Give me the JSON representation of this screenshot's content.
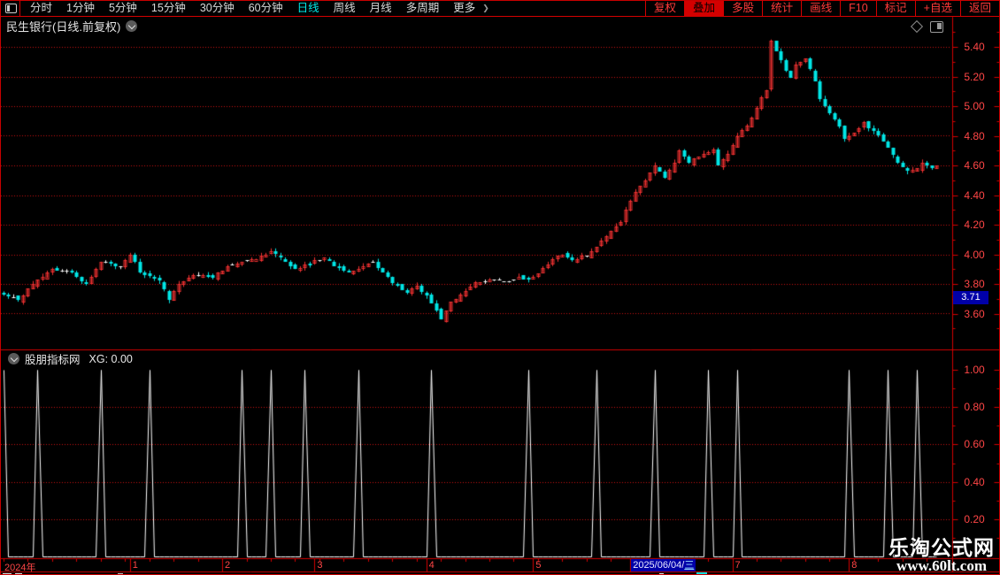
{
  "window": {
    "background": "#000000",
    "border_color": "#c80000"
  },
  "toolbar": {
    "left_items": [
      {
        "label": "分时"
      },
      {
        "label": "1分钟"
      },
      {
        "label": "5分钟"
      },
      {
        "label": "15分钟"
      },
      {
        "label": "30分钟"
      },
      {
        "label": "60分钟"
      },
      {
        "label": "日线",
        "selected": true
      },
      {
        "label": "周线"
      },
      {
        "label": "月线"
      },
      {
        "label": "多周期"
      },
      {
        "label": "更多",
        "chevron": true
      }
    ],
    "right_items": [
      {
        "label": "复权"
      },
      {
        "label": "叠加",
        "active": true
      },
      {
        "label": "多股"
      },
      {
        "label": "统计"
      },
      {
        "label": "画线"
      },
      {
        "label": "F10"
      },
      {
        "label": "标记"
      },
      {
        "label": "+自选"
      },
      {
        "label": "返回"
      }
    ]
  },
  "title_bar": {
    "title": "民生银行(日线.前复权)"
  },
  "sub_panel": {
    "name": "股朋指标网",
    "value_text": "XG: 0.00"
  },
  "watermark": {
    "line1": "乐淘公式网",
    "line2": "www.60lt.com"
  },
  "chart_data": [
    {
      "type": "candlestick",
      "name": "民生银行 日线 前复权",
      "price_axis": {
        "labels": [
          "5.40",
          "5.20",
          "5.00",
          "4.80",
          "4.60",
          "4.40",
          "4.20",
          "4.00",
          "3.80",
          "3.60"
        ],
        "max": 5.4,
        "min": 3.6,
        "step": 0.2,
        "grid": "dotted-red"
      },
      "current_price_tag": {
        "value": "3.71",
        "price": 3.71,
        "bg": "#0000a8"
      },
      "colors": {
        "up": "#f03030",
        "down": "#00e6e6",
        "doji": "#ffffff",
        "grid": "#cf1010",
        "axis": "#d40000"
      },
      "n_candles": 193,
      "close_landmarks": [
        [
          0,
          3.73
        ],
        [
          3,
          3.69
        ],
        [
          6,
          3.8
        ],
        [
          10,
          3.9
        ],
        [
          14,
          3.88
        ],
        [
          17,
          3.8
        ],
        [
          20,
          3.95
        ],
        [
          24,
          3.92
        ],
        [
          26,
          4.0
        ],
        [
          28,
          3.88
        ],
        [
          32,
          3.82
        ],
        [
          34,
          3.7
        ],
        [
          36,
          3.8
        ],
        [
          39,
          3.86
        ],
        [
          43,
          3.85
        ],
        [
          46,
          3.92
        ],
        [
          49,
          3.95
        ],
        [
          52,
          3.98
        ],
        [
          55,
          4.02
        ],
        [
          57,
          3.98
        ],
        [
          60,
          3.9
        ],
        [
          63,
          3.93
        ],
        [
          66,
          3.99
        ],
        [
          68,
          3.92
        ],
        [
          71,
          3.88
        ],
        [
          74,
          3.92
        ],
        [
          76,
          3.95
        ],
        [
          78,
          3.88
        ],
        [
          81,
          3.78
        ],
        [
          83,
          3.74
        ],
        [
          85,
          3.78
        ],
        [
          87,
          3.72
        ],
        [
          90,
          3.56
        ],
        [
          92,
          3.68
        ],
        [
          95,
          3.75
        ],
        [
          97,
          3.8
        ],
        [
          100,
          3.84
        ],
        [
          103,
          3.82
        ],
        [
          106,
          3.85
        ],
        [
          108,
          3.82
        ],
        [
          111,
          3.9
        ],
        [
          113,
          3.97
        ],
        [
          115,
          4.0
        ],
        [
          117,
          3.96
        ],
        [
          120,
          4.0
        ],
        [
          122,
          4.05
        ],
        [
          124,
          4.12
        ],
        [
          127,
          4.22
        ],
        [
          128,
          4.3
        ],
        [
          130,
          4.42
        ],
        [
          132,
          4.5
        ],
        [
          134,
          4.6
        ],
        [
          136,
          4.52
        ],
        [
          138,
          4.62
        ],
        [
          139,
          4.7
        ],
        [
          141,
          4.62
        ],
        [
          143,
          4.66
        ],
        [
          146,
          4.7
        ],
        [
          147,
          4.6
        ],
        [
          149,
          4.68
        ],
        [
          151,
          4.8
        ],
        [
          154,
          4.92
        ],
        [
          156,
          5.06
        ],
        [
          157,
          5.1
        ],
        [
          158,
          5.44
        ],
        [
          159,
          5.38
        ],
        [
          161,
          5.24
        ],
        [
          162,
          5.2
        ],
        [
          163,
          5.28
        ],
        [
          165,
          5.32
        ],
        [
          167,
          5.18
        ],
        [
          168,
          5.05
        ],
        [
          170,
          4.95
        ],
        [
          172,
          4.86
        ],
        [
          173,
          4.78
        ],
        [
          175,
          4.82
        ],
        [
          177,
          4.88
        ],
        [
          178,
          4.85
        ],
        [
          180,
          4.8
        ],
        [
          182,
          4.72
        ],
        [
          184,
          4.62
        ],
        [
          186,
          4.56
        ],
        [
          188,
          4.58
        ],
        [
          189,
          4.62
        ],
        [
          191,
          4.58
        ],
        [
          192,
          4.6
        ]
      ],
      "x_axis": {
        "year_label": "2024年",
        "month_labels": [
          {
            "label": "1",
            "index": 26
          },
          {
            "label": "2",
            "index": 45
          },
          {
            "label": "3",
            "index": 64
          },
          {
            "label": "4",
            "index": 87
          },
          {
            "label": "5",
            "index": 109
          },
          {
            "label": "7",
            "index": 150
          },
          {
            "label": "8",
            "index": 174
          }
        ],
        "date_tag": {
          "text": "2025/06/04/",
          "day": "三",
          "index": 129
        }
      }
    },
    {
      "type": "line",
      "name": "股朋指标网",
      "value_text": "XG: 0.00",
      "y_axis": {
        "labels": [
          "1.00",
          "0.80",
          "0.60",
          "0.40",
          "0.20"
        ],
        "max": 1.0,
        "min": 0.0
      },
      "signal_indices": [
        0,
        7,
        20,
        30,
        49,
        55,
        62,
        73,
        88,
        108,
        122,
        134,
        145,
        151,
        174,
        182,
        188
      ],
      "signal_value": 1.0,
      "baseline_value": 0.0,
      "line_color": "#ffffff",
      "legend_position": "top-left"
    }
  ]
}
